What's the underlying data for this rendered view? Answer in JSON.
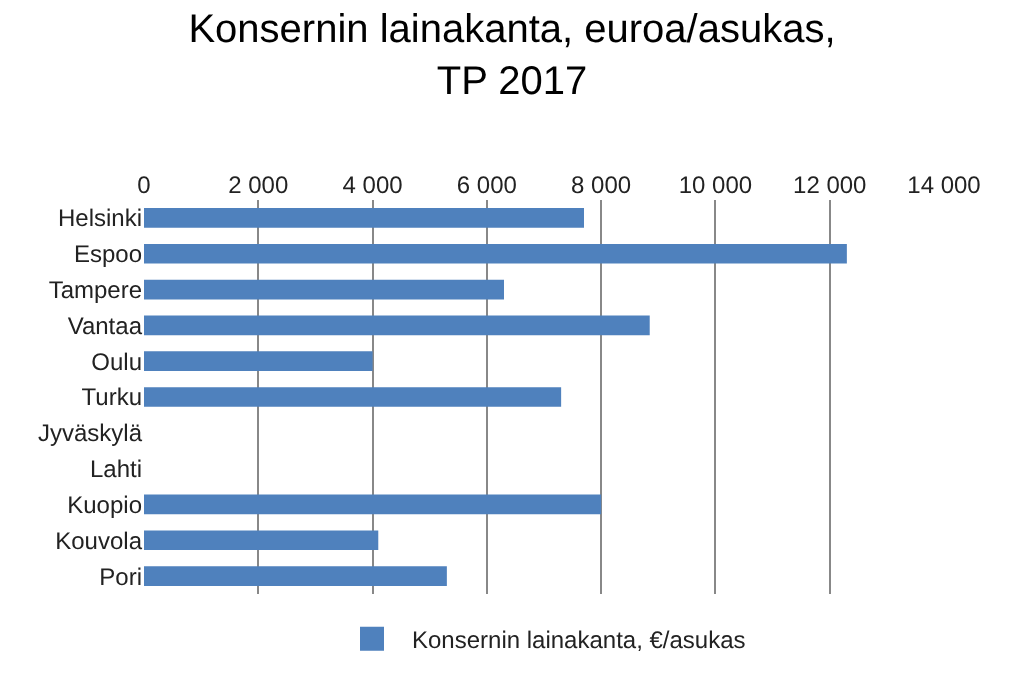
{
  "chart_data": {
    "type": "bar",
    "orientation": "horizontal",
    "title": "Konsernin lainakanta, euroa/asukas,\nTP 2017",
    "categories": [
      "Helsinki",
      "Espoo",
      "Tampere",
      "Vantaa",
      "Oulu",
      "Turku",
      "Jyväskylä",
      "Lahti",
      "Kuopio",
      "Kouvola",
      "Pori"
    ],
    "series": [
      {
        "name": "Konsernin lainakanta, €/asukas",
        "color": "#4f81bd",
        "values": [
          7700,
          12300,
          6300,
          8850,
          4000,
          7300,
          null,
          null,
          8000,
          4100,
          5300
        ]
      }
    ],
    "xlim": [
      0,
      14000
    ],
    "xticks": [
      0,
      {
        "value": 2000,
        "label": "2 000"
      },
      {
        "value": 4000,
        "label": "4 000"
      },
      {
        "value": 6000,
        "label": "6 000"
      },
      {
        "value": 8000,
        "label": "8 000"
      },
      {
        "value": 10000,
        "label": "10 000"
      },
      {
        "value": 12000,
        "label": "12 000"
      },
      {
        "value": 14000,
        "label": "14 000"
      }
    ],
    "grid": "x",
    "legend": "bottom"
  }
}
